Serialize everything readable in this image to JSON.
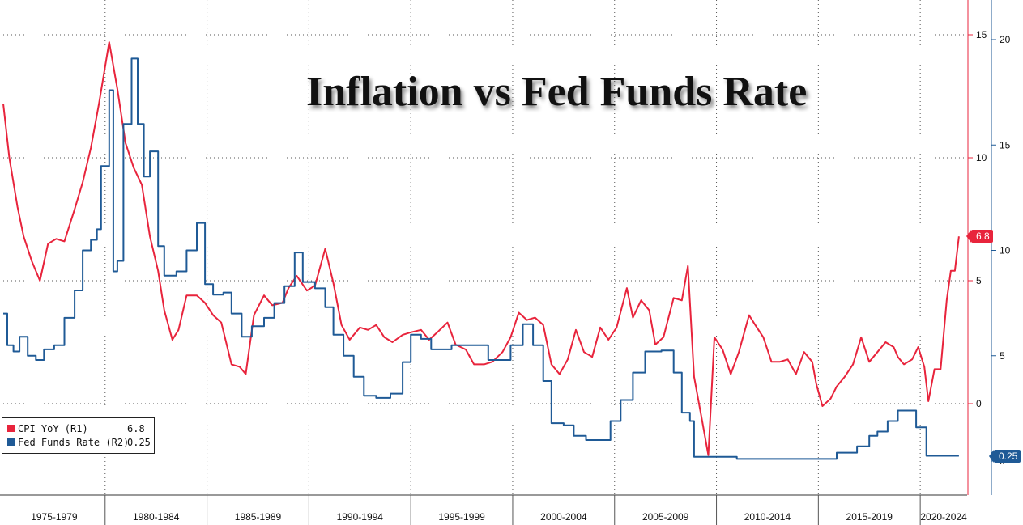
{
  "chart_data": {
    "type": "line",
    "title": "Inflation vs Fed Funds Rate",
    "x_period_labels": [
      "1975-1979",
      "1980-1984",
      "1985-1989",
      "1990-1994",
      "1995-1999",
      "2000-2004",
      "2005-2009",
      "2010-2014",
      "2015-2019",
      "2020-2024"
    ],
    "axes": {
      "r1": {
        "label": "R1",
        "ticks": [
          0,
          5,
          10,
          15
        ],
        "range": [
          -3.5,
          16.5
        ],
        "color": "#e8243c"
      },
      "r2": {
        "label": "R2",
        "ticks": [
          0,
          5,
          10,
          15,
          20
        ],
        "range": [
          -1.5,
          22.0
        ],
        "color": "#1f5a96"
      }
    },
    "grid": true,
    "legend_position": "bottom-left",
    "series": [
      {
        "name": "CPI YoY (R1)",
        "axis": "r1",
        "color": "#e8243c",
        "last_value": "6.8",
        "points": [
          [
            1975.0,
            12.2
          ],
          [
            1975.3,
            10.0
          ],
          [
            1975.7,
            8.0
          ],
          [
            1976.0,
            6.8
          ],
          [
            1976.4,
            5.8
          ],
          [
            1976.8,
            5.0
          ],
          [
            1977.2,
            6.5
          ],
          [
            1977.6,
            6.7
          ],
          [
            1978.0,
            6.6
          ],
          [
            1978.5,
            7.9
          ],
          [
            1978.9,
            9.0
          ],
          [
            1979.3,
            10.4
          ],
          [
            1979.7,
            12.2
          ],
          [
            1980.2,
            14.7
          ],
          [
            1980.6,
            12.8
          ],
          [
            1981.0,
            10.6
          ],
          [
            1981.4,
            9.6
          ],
          [
            1981.8,
            8.9
          ],
          [
            1982.2,
            6.8
          ],
          [
            1982.6,
            5.4
          ],
          [
            1982.9,
            3.8
          ],
          [
            1983.3,
            2.6
          ],
          [
            1983.6,
            3.0
          ],
          [
            1984.0,
            4.4
          ],
          [
            1984.5,
            4.4
          ],
          [
            1984.9,
            4.1
          ],
          [
            1985.3,
            3.6
          ],
          [
            1985.7,
            3.3
          ],
          [
            1986.2,
            1.6
          ],
          [
            1986.6,
            1.5
          ],
          [
            1986.9,
            1.2
          ],
          [
            1987.3,
            3.6
          ],
          [
            1987.8,
            4.4
          ],
          [
            1988.2,
            4.0
          ],
          [
            1988.7,
            4.1
          ],
          [
            1989.0,
            4.7
          ],
          [
            1989.4,
            5.2
          ],
          [
            1989.9,
            4.6
          ],
          [
            1990.3,
            4.8
          ],
          [
            1990.8,
            6.3
          ],
          [
            1991.2,
            4.9
          ],
          [
            1991.6,
            3.2
          ],
          [
            1992.0,
            2.6
          ],
          [
            1992.5,
            3.1
          ],
          [
            1992.9,
            3.0
          ],
          [
            1993.3,
            3.2
          ],
          [
            1993.7,
            2.7
          ],
          [
            1994.1,
            2.5
          ],
          [
            1994.6,
            2.8
          ],
          [
            1995.0,
            2.9
          ],
          [
            1995.5,
            3.0
          ],
          [
            1995.9,
            2.6
          ],
          [
            1996.3,
            2.9
          ],
          [
            1996.8,
            3.3
          ],
          [
            1997.2,
            2.4
          ],
          [
            1997.7,
            2.2
          ],
          [
            1998.1,
            1.6
          ],
          [
            1998.6,
            1.6
          ],
          [
            1999.0,
            1.7
          ],
          [
            1999.5,
            2.1
          ],
          [
            1999.9,
            2.7
          ],
          [
            2000.3,
            3.7
          ],
          [
            2000.7,
            3.4
          ],
          [
            2001.1,
            3.5
          ],
          [
            2001.5,
            3.2
          ],
          [
            2001.9,
            1.6
          ],
          [
            2002.3,
            1.2
          ],
          [
            2002.7,
            1.8
          ],
          [
            2003.1,
            3.0
          ],
          [
            2003.5,
            2.1
          ],
          [
            2003.9,
            1.9
          ],
          [
            2004.3,
            3.1
          ],
          [
            2004.7,
            2.6
          ],
          [
            2005.1,
            3.1
          ],
          [
            2005.6,
            4.7
          ],
          [
            2005.9,
            3.5
          ],
          [
            2006.3,
            4.2
          ],
          [
            2006.7,
            3.8
          ],
          [
            2007.0,
            2.4
          ],
          [
            2007.4,
            2.7
          ],
          [
            2007.9,
            4.3
          ],
          [
            2008.3,
            4.2
          ],
          [
            2008.6,
            5.6
          ],
          [
            2008.9,
            1.1
          ],
          [
            2009.3,
            -0.7
          ],
          [
            2009.6,
            -2.1
          ],
          [
            2009.9,
            2.7
          ],
          [
            2010.3,
            2.2
          ],
          [
            2010.7,
            1.2
          ],
          [
            2011.1,
            2.1
          ],
          [
            2011.6,
            3.6
          ],
          [
            2011.9,
            3.2
          ],
          [
            2012.3,
            2.7
          ],
          [
            2012.7,
            1.7
          ],
          [
            2013.1,
            1.7
          ],
          [
            2013.5,
            1.8
          ],
          [
            2013.9,
            1.2
          ],
          [
            2014.3,
            2.1
          ],
          [
            2014.7,
            1.7
          ],
          [
            2014.9,
            0.8
          ],
          [
            2015.2,
            -0.1
          ],
          [
            2015.6,
            0.2
          ],
          [
            2015.9,
            0.7
          ],
          [
            2016.3,
            1.1
          ],
          [
            2016.7,
            1.6
          ],
          [
            2017.1,
            2.7
          ],
          [
            2017.5,
            1.7
          ],
          [
            2017.9,
            2.1
          ],
          [
            2018.3,
            2.5
          ],
          [
            2018.7,
            2.3
          ],
          [
            2018.9,
            1.9
          ],
          [
            2019.2,
            1.6
          ],
          [
            2019.6,
            1.8
          ],
          [
            2019.9,
            2.3
          ],
          [
            2020.2,
            1.5
          ],
          [
            2020.4,
            0.1
          ],
          [
            2020.7,
            1.4
          ],
          [
            2021.0,
            1.4
          ],
          [
            2021.3,
            4.2
          ],
          [
            2021.5,
            5.4
          ],
          [
            2021.7,
            5.4
          ],
          [
            2021.9,
            6.8
          ]
        ]
      },
      {
        "name": "Fed Funds Rate (R2)",
        "axis": "r2",
        "color": "#1f5a96",
        "last_value": "0.25",
        "points": [
          [
            1975.0,
            7.0
          ],
          [
            1975.2,
            5.5
          ],
          [
            1975.5,
            5.2
          ],
          [
            1975.8,
            5.9
          ],
          [
            1976.2,
            5.0
          ],
          [
            1976.6,
            4.8
          ],
          [
            1977.0,
            5.3
          ],
          [
            1977.5,
            5.5
          ],
          [
            1978.0,
            6.8
          ],
          [
            1978.5,
            8.1
          ],
          [
            1978.9,
            10.0
          ],
          [
            1979.3,
            10.5
          ],
          [
            1979.6,
            11.0
          ],
          [
            1979.8,
            14.0
          ],
          [
            1980.2,
            17.6
          ],
          [
            1980.4,
            9.0
          ],
          [
            1980.6,
            9.5
          ],
          [
            1980.9,
            16.0
          ],
          [
            1981.3,
            19.1
          ],
          [
            1981.6,
            16.0
          ],
          [
            1981.9,
            13.5
          ],
          [
            1982.2,
            14.7
          ],
          [
            1982.6,
            10.2
          ],
          [
            1982.9,
            8.8
          ],
          [
            1983.5,
            9.0
          ],
          [
            1984.0,
            10.0
          ],
          [
            1984.5,
            11.3
          ],
          [
            1984.9,
            8.4
          ],
          [
            1985.3,
            7.9
          ],
          [
            1985.8,
            8.0
          ],
          [
            1986.2,
            7.0
          ],
          [
            1986.7,
            5.9
          ],
          [
            1987.2,
            6.4
          ],
          [
            1987.8,
            6.8
          ],
          [
            1988.3,
            7.5
          ],
          [
            1988.8,
            8.3
          ],
          [
            1989.3,
            9.9
          ],
          [
            1989.7,
            8.5
          ],
          [
            1990.3,
            8.2
          ],
          [
            1990.8,
            7.3
          ],
          [
            1991.2,
            6.0
          ],
          [
            1991.7,
            5.0
          ],
          [
            1992.2,
            4.0
          ],
          [
            1992.7,
            3.1
          ],
          [
            1993.3,
            3.0
          ],
          [
            1994.0,
            3.2
          ],
          [
            1994.6,
            4.7
          ],
          [
            1995.0,
            6.0
          ],
          [
            1995.5,
            5.8
          ],
          [
            1996.0,
            5.3
          ],
          [
            1997.0,
            5.5
          ],
          [
            1998.0,
            5.5
          ],
          [
            1998.8,
            4.8
          ],
          [
            1999.4,
            4.8
          ],
          [
            1999.9,
            5.5
          ],
          [
            2000.5,
            6.5
          ],
          [
            2001.0,
            5.5
          ],
          [
            2001.5,
            3.8
          ],
          [
            2001.9,
            1.8
          ],
          [
            2002.5,
            1.7
          ],
          [
            2003.0,
            1.2
          ],
          [
            2003.6,
            1.0
          ],
          [
            2004.3,
            1.0
          ],
          [
            2004.8,
            1.9
          ],
          [
            2005.3,
            2.9
          ],
          [
            2005.9,
            4.2
          ],
          [
            2006.5,
            5.2
          ],
          [
            2007.3,
            5.25
          ],
          [
            2007.9,
            4.2
          ],
          [
            2008.3,
            2.3
          ],
          [
            2008.7,
            1.9
          ],
          [
            2008.9,
            0.2
          ],
          [
            2009.5,
            0.2
          ],
          [
            2010.0,
            0.2
          ],
          [
            2011.0,
            0.1
          ],
          [
            2012.0,
            0.1
          ],
          [
            2013.0,
            0.1
          ],
          [
            2014.0,
            0.1
          ],
          [
            2015.0,
            0.1
          ],
          [
            2015.9,
            0.4
          ],
          [
            2016.5,
            0.4
          ],
          [
            2016.9,
            0.7
          ],
          [
            2017.5,
            1.2
          ],
          [
            2017.9,
            1.4
          ],
          [
            2018.4,
            1.9
          ],
          [
            2018.9,
            2.4
          ],
          [
            2019.4,
            2.4
          ],
          [
            2019.8,
            1.6
          ],
          [
            2020.1,
            1.6
          ],
          [
            2020.3,
            0.25
          ],
          [
            2020.8,
            0.25
          ],
          [
            2021.3,
            0.25
          ],
          [
            2021.9,
            0.25
          ]
        ]
      }
    ]
  },
  "legend": {
    "items": [
      {
        "label": "CPI YoY (R1)",
        "value": "6.8",
        "color": "#e8243c"
      },
      {
        "label": "Fed Funds Rate (R2)",
        "value": "0.25",
        "color": "#1f5a96"
      }
    ]
  }
}
